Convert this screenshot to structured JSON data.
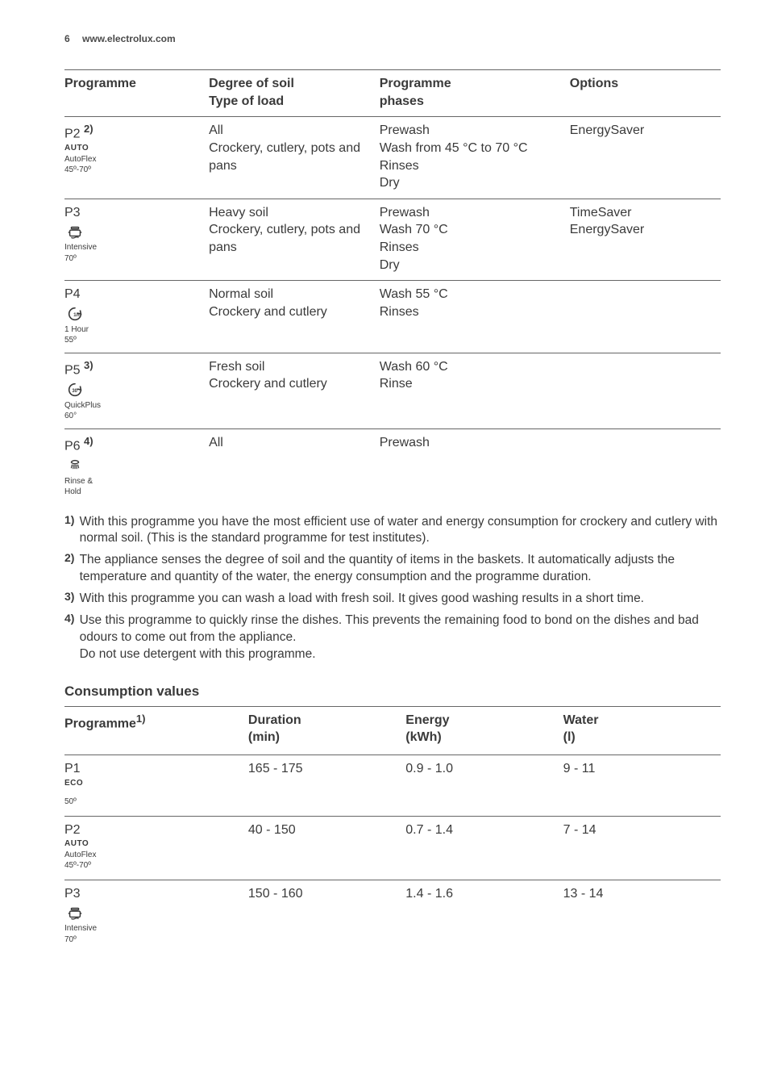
{
  "header": {
    "page_number": "6",
    "site": "www.electrolux.com"
  },
  "prog_table": {
    "headers": {
      "programme": "Programme",
      "soil_l1": "Degree of soil",
      "soil_l2": "Type of load",
      "phases_l1": "Programme",
      "phases_l2": "phases",
      "options": "Options"
    },
    "rows": [
      {
        "code": "P2",
        "sup": "2)",
        "label_bold": "AUTO",
        "label1": "AutoFlex",
        "label2": "45º-70º",
        "icon": "",
        "soil_l1": "All",
        "soil_l2": "Crockery, cutlery, pots and pans",
        "phases": "Prewash\nWash from 45 °C to 70 °C\nRinses\nDry",
        "options": "EnergySaver"
      },
      {
        "code": "P3",
        "sup": "",
        "label_bold": "",
        "label1": "Intensive",
        "label2": "70º",
        "icon": "pot",
        "soil_l1": "Heavy soil",
        "soil_l2": "Crockery, cutlery, pots and pans",
        "phases": "Prewash\nWash 70 °C\nRinses\nDry",
        "options": "TimeSaver\nEnergySaver"
      },
      {
        "code": "P4",
        "sup": "",
        "label_bold": "",
        "label1": "1 Hour",
        "label2": "55º",
        "icon": "clock1h",
        "soil_l1": "Normal soil",
        "soil_l2": "Crockery and cutlery",
        "phases": "Wash 55 °C\nRinses",
        "options": ""
      },
      {
        "code": "P5",
        "sup": "3)",
        "label_bold": "",
        "label1": "QuickPlus",
        "label2": "60°",
        "icon": "clock30",
        "soil_l1": "Fresh soil",
        "soil_l2": "Crockery and cutlery",
        "phases": "Wash 60 °C\nRinse",
        "options": ""
      },
      {
        "code": "P6",
        "sup": "4)",
        "label_bold": "",
        "label1": "Rinse &",
        "label2": "Hold",
        "icon": "shower",
        "soil_l1": "All",
        "soil_l2": "",
        "phases": "Prewash",
        "options": ""
      }
    ]
  },
  "footnotes": {
    "n1": "With this programme you have the most efficient use of water and energy consumption for crockery and cutlery with normal soil. (This is the standard programme for test institutes).",
    "n2": "The appliance senses the degree of soil and the quantity of items in the baskets. It automatically adjusts the temperature and quantity of the water, the energy consumption and the programme duration.",
    "n3": "With this programme you can wash a load with fresh soil. It gives good washing results in a short time.",
    "n4a": "Use this programme to quickly rinse the dishes. This prevents the remaining food to bond on the dishes and bad odours to come out from the appliance.",
    "n4b": "Do not use detergent with this programme."
  },
  "consumption": {
    "title": "Consumption values",
    "headers": {
      "prog": "Programme",
      "prog_sup": "1)",
      "dur_l1": "Duration",
      "dur_l2": "(min)",
      "en_l1": "Energy",
      "en_l2": "(kWh)",
      "wat_l1": "Water",
      "wat_l2": "(l)"
    },
    "rows": [
      {
        "code": "P1",
        "label_bold": "ECO",
        "label1": "",
        "label2": "50º",
        "icon": "",
        "dur": "165 - 175",
        "en": "0.9 - 1.0",
        "wat": "9 - 11"
      },
      {
        "code": "P2",
        "label_bold": "AUTO",
        "label1": "AutoFlex",
        "label2": "45º-70º",
        "icon": "",
        "dur": "40 - 150",
        "en": "0.7 - 1.4",
        "wat": "7 - 14"
      },
      {
        "code": "P3",
        "label_bold": "",
        "label1": "Intensive",
        "label2": "70º",
        "icon": "pot",
        "dur": "150 - 160",
        "en": "1.4 - 1.6",
        "wat": "13 - 14"
      }
    ]
  }
}
